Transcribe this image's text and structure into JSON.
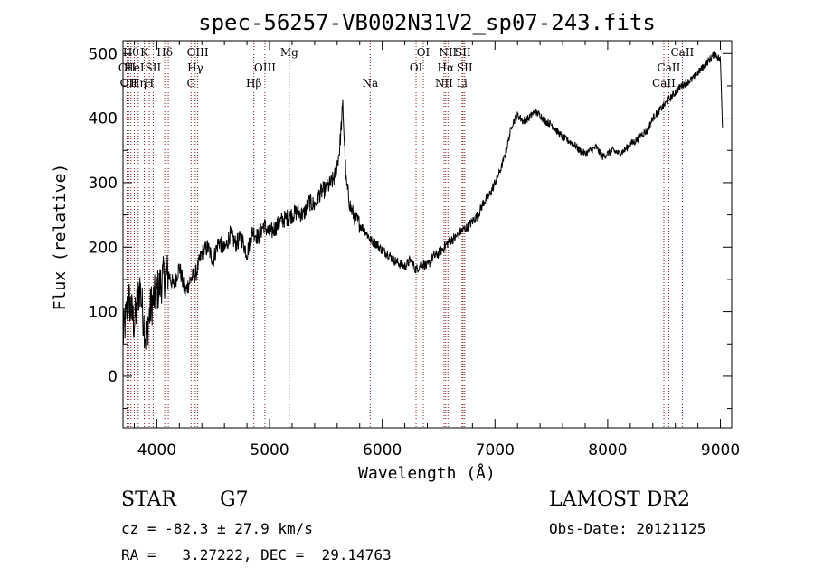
{
  "chart_data": {
    "type": "line",
    "title": "spec-56257-VB002N31V2_sp07-243.fits",
    "xlabel": "Wavelength (Å)",
    "ylabel": "Flux (relative)",
    "xlim": [
      3700,
      9100
    ],
    "ylim": [
      -80,
      520
    ],
    "xticks": [
      4000,
      5000,
      6000,
      7000,
      8000,
      9000
    ],
    "yticks": [
      0,
      100,
      200,
      300,
      400,
      500
    ],
    "grid": false,
    "legend": "none",
    "line_color": "#000000",
    "marker_color": "#8b1a1a",
    "series": [
      {
        "x": [
          3700,
          3750,
          3800,
          3850,
          3900,
          3950,
          4000,
          4050,
          4100,
          4150,
          4200,
          4250,
          4300,
          4350,
          4400,
          4450,
          4500,
          4550,
          4600,
          4650,
          4700,
          4750,
          4800,
          4850,
          4900,
          4950,
          5000,
          5050,
          5100,
          5150,
          5200,
          5250,
          5300,
          5350,
          5400,
          5450,
          5500,
          5550,
          5580,
          5620,
          5650,
          5680,
          5720,
          5760,
          5800,
          5850,
          5900,
          5950,
          6000,
          6050,
          6100,
          6150,
          6200,
          6250,
          6300,
          6350,
          6400,
          6450,
          6500,
          6550,
          6600,
          6650,
          6700,
          6750,
          6800,
          6850,
          6900,
          6950,
          7000,
          7050,
          7100,
          7150,
          7200,
          7250,
          7300,
          7350,
          7400,
          7450,
          7500,
          7550,
          7600,
          7650,
          7700,
          7750,
          7800,
          7850,
          7900,
          7950,
          8000,
          8050,
          8100,
          8150,
          8200,
          8250,
          8300,
          8350,
          8400,
          8450,
          8500,
          8550,
          8600,
          8650,
          8700,
          8750,
          8800,
          8850,
          8900,
          8950,
          9000,
          9020
        ],
        "values": [
          60,
          120,
          80,
          140,
          60,
          110,
          130,
          150,
          160,
          140,
          170,
          130,
          150,
          160,
          190,
          200,
          180,
          210,
          195,
          220,
          205,
          215,
          190,
          225,
          215,
          235,
          220,
          230,
          240,
          245,
          250,
          255,
          250,
          270,
          265,
          285,
          290,
          300,
          310,
          350,
          420,
          300,
          260,
          245,
          235,
          225,
          210,
          205,
          195,
          190,
          180,
          175,
          170,
          180,
          165,
          175,
          170,
          185,
          190,
          200,
          210,
          215,
          225,
          230,
          240,
          250,
          270,
          280,
          300,
          320,
          350,
          390,
          405,
          395,
          400,
          410,
          405,
          395,
          390,
          380,
          370,
          365,
          360,
          350,
          345,
          350,
          355,
          340,
          345,
          350,
          345,
          350,
          360,
          365,
          375,
          380,
          400,
          410,
          420,
          430,
          440,
          450,
          455,
          460,
          470,
          480,
          490,
          500,
          490,
          380
        ]
      }
    ],
    "lines": [
      {
        "w": 3736,
        "label": "OII",
        "row": 1
      },
      {
        "w": 3750,
        "label": "OII",
        "row": 2
      },
      {
        "w": 3770,
        "label": "Hθ",
        "row": 0
      },
      {
        "w": 3800,
        "label": "HeI",
        "row": 1
      },
      {
        "w": 3835,
        "label": "Hη",
        "row": 2
      },
      {
        "w": 3889,
        "label": "K",
        "row": 0
      },
      {
        "w": 3933,
        "label": "H",
        "row": 2
      },
      {
        "w": 3968,
        "label": "SII",
        "row": 1
      },
      {
        "w": 4070,
        "label": "Hδ",
        "row": 0
      },
      {
        "w": 4102,
        "label": "",
        "row": 0
      },
      {
        "w": 4304,
        "label": "G",
        "row": 2
      },
      {
        "w": 4341,
        "label": "Hγ",
        "row": 1
      },
      {
        "w": 4363,
        "label": "OIII",
        "row": 0
      },
      {
        "w": 4861,
        "label": "Hβ",
        "row": 2
      },
      {
        "w": 4959,
        "label": "OIII",
        "row": 1
      },
      {
        "w": 5175,
        "label": "Mg",
        "row": 0
      },
      {
        "w": 5893,
        "label": "Na",
        "row": 2
      },
      {
        "w": 6300,
        "label": "OI",
        "row": 1
      },
      {
        "w": 6364,
        "label": "OI",
        "row": 0
      },
      {
        "w": 6548,
        "label": "NII",
        "row": 2
      },
      {
        "w": 6563,
        "label": "Hα",
        "row": 1
      },
      {
        "w": 6583,
        "label": "NII",
        "row": 0
      },
      {
        "w": 6708,
        "label": "Li",
        "row": 2
      },
      {
        "w": 6716,
        "label": "SII",
        "row": 0
      },
      {
        "w": 6731,
        "label": "SII",
        "row": 1
      },
      {
        "w": 8498,
        "label": "CaII",
        "row": 2
      },
      {
        "w": 8542,
        "label": "CaII",
        "row": 1
      },
      {
        "w": 8662,
        "label": "CaII",
        "row": 0
      }
    ]
  },
  "info": {
    "object_class": "STAR",
    "subclass": "G7",
    "survey": "LAMOST DR2",
    "redshift": "cz = -82.3 ± 27.9 km/s",
    "obs_date": "Obs-Date: 20121125",
    "coords": "RA =   3.27222, DEC =  29.14763"
  }
}
